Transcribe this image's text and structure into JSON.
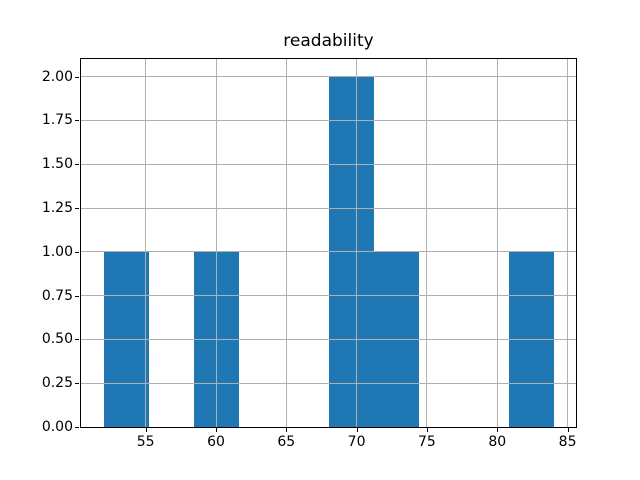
{
  "chart_data": {
    "type": "bar",
    "subtype": "histogram",
    "title": "readability",
    "xlabel": "",
    "ylabel": "",
    "bin_edges": [
      52.0,
      55.2,
      58.4,
      61.6,
      64.8,
      68.0,
      71.2,
      74.4,
      77.6,
      80.8,
      84.0
    ],
    "counts": [
      1,
      0,
      1,
      0,
      0,
      2,
      1,
      0,
      0,
      1
    ],
    "xlim": [
      50.4,
      85.6
    ],
    "ylim": [
      0,
      2.1
    ],
    "xtick_values": [
      55,
      60,
      65,
      70,
      75,
      80,
      85
    ],
    "xtick_labels": [
      "55",
      "60",
      "65",
      "70",
      "75",
      "80",
      "85"
    ],
    "ytick_values": [
      0,
      0.25,
      0.5,
      0.75,
      1.0,
      1.25,
      1.5,
      1.75,
      2.0
    ],
    "ytick_labels": [
      "0.00",
      "0.25",
      "0.50",
      "0.75",
      "1.00",
      "1.25",
      "1.50",
      "1.75",
      "2.00"
    ],
    "grid": true,
    "grid_above_bars": true,
    "legend_position": "none",
    "bar_color": "#1f77b4",
    "grid_color": "#b0b0b0",
    "axis_color": "#000000",
    "text_color": "#000000",
    "background_color": "#ffffff"
  }
}
